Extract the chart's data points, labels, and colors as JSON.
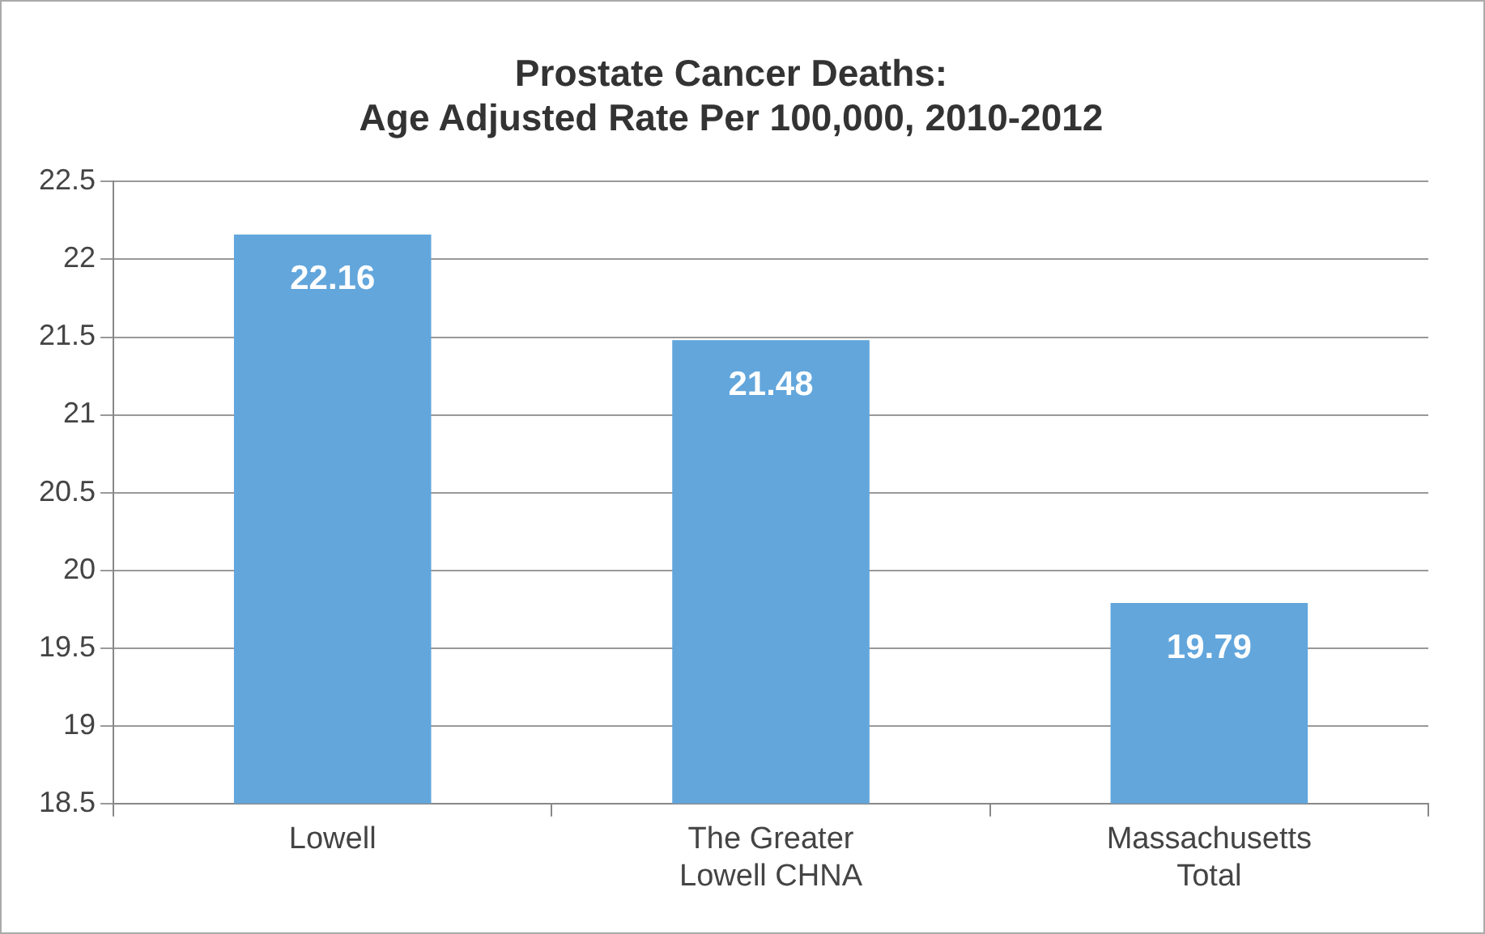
{
  "chart_data": {
    "type": "bar",
    "title": "Prostate Cancer Deaths:\nAge Adjusted Rate Per 100,000, 2010-2012",
    "categories": [
      "Lowell",
      "The Greater Lowell CHNA",
      "Massachusetts Total"
    ],
    "values": [
      22.16,
      21.48,
      19.79
    ],
    "color": "#62a6dc",
    "ylim": [
      18.5,
      22.5
    ],
    "yticks": [
      18.5,
      19,
      19.5,
      20,
      20.5,
      21,
      21.5,
      22,
      22.5
    ],
    "grid": "y",
    "legend": false,
    "data_labels": true
  }
}
